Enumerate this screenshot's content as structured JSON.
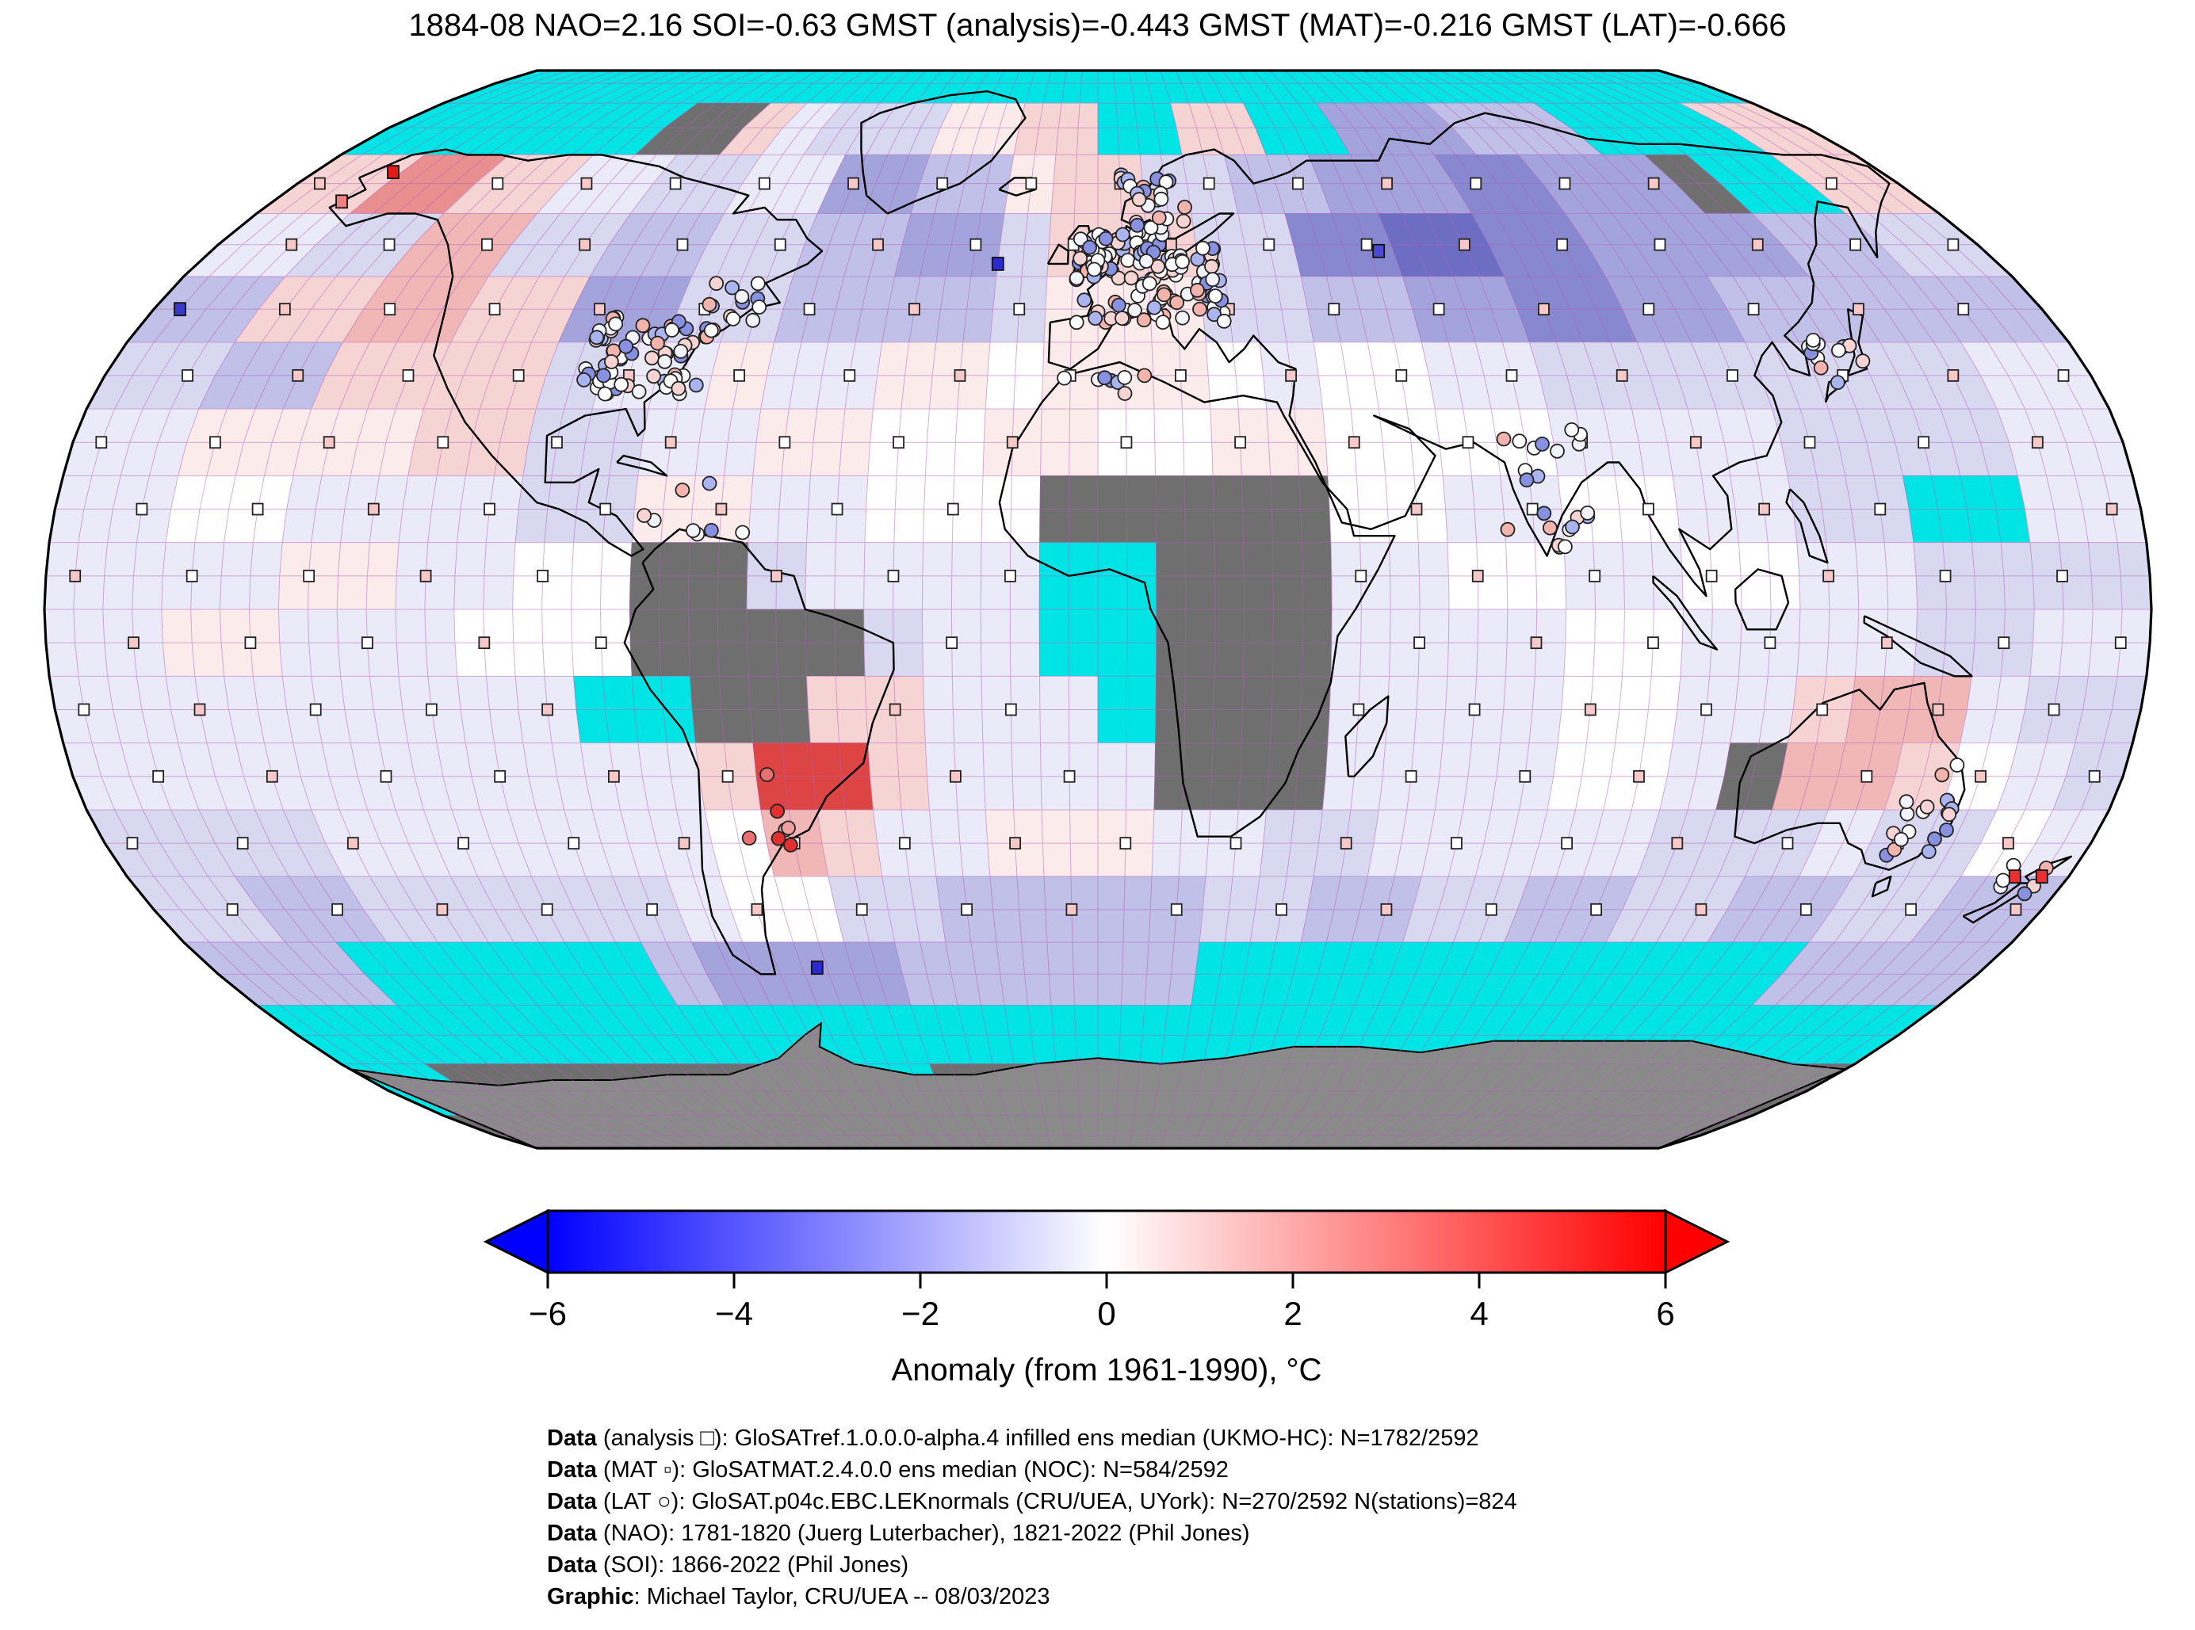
{
  "title": "1884-08 NAO=2.16 SOI=-0.63 GMST (analysis)=-0.443 GMST (MAT)=-0.216 GMST (LAT)=-0.666",
  "colorbar": {
    "label": "Anomaly (from 1961-1990), °C",
    "min": -6,
    "max": 6,
    "ticks": [
      "−6",
      "−4",
      "−2",
      "0",
      "2",
      "4",
      "6"
    ],
    "tick_values": [
      -6,
      -4,
      -2,
      0,
      2,
      4,
      6
    ],
    "left_color": "#0000ff",
    "mid_color": "#ffffff",
    "right_color": "#ff0000"
  },
  "captions": [
    {
      "bold": "Data",
      "text": " (analysis □): GloSATref.1.0.0.0-alpha.4 infilled ens median (UKMO-HC): N=1782/2592"
    },
    {
      "bold": "Data",
      "text": " (MAT ▫): GloSATMAT.2.4.0.0 ens median (NOC): N=584/2592"
    },
    {
      "bold": "Data",
      "text": " (LAT ○): GloSAT.p04c.EBC.LEKnormals (CRU/UEA, UYork): N=270/2592 N(stations)=824"
    },
    {
      "bold": "Data",
      "text": " (NAO): 1781-1820 (Juerg Luterbacher), 1821-2022 (Phil Jones)"
    },
    {
      "bold": "Data",
      "text": " (SOI): 1866-2022 (Phil Jones)"
    },
    {
      "bold": "Graphic",
      "text": ": Michael Taylor, CRU/UEA -- 08/03/2023"
    }
  ],
  "chart_data": {
    "type": "heatmap",
    "projection": "robinson",
    "period": "1884-08",
    "stats": {
      "NAO": 2.16,
      "SOI": -0.63,
      "GMST_analysis": -0.443,
      "GMST_MAT": -0.216,
      "GMST_LAT": -0.666
    },
    "counts": {
      "analysis": "1782/2592",
      "MAT": "584/2592",
      "LAT": "270/2592",
      "stations": 824
    },
    "anomaly_range_c": [
      -6,
      6
    ],
    "missing_color": "#6f6f6f",
    "out_of_range_color": "#00e4e6",
    "antarctica_color": "#8a8a8a",
    "palette": {
      "W": "#ffffff",
      "a": "#eaeaf8",
      "b": "#d8d8f1",
      "c": "#c0c0e8",
      "d": "#a4a4dd",
      "e": "#8888d0",
      "f": "#6d6dc4",
      "p": "#fbebeb",
      "q": "#f7d4d4",
      "r": "#f1b6b6",
      "s": "#e98f8f",
      "u": "#dd4444",
      "C": "#00e4e6",
      "G": "#6f6f6f"
    },
    "grid_extent": {
      "lon": [
        -180,
        180
      ],
      "lat": [
        90,
        -90
      ],
      "cell_deg": 10
    },
    "grid_rows_10deg": [
      "CCCCCCCCCCCCCCCCCCCCCCCCCCCCCCCCCCCC",
      "CCCCCCCGGqabbbppqqCCqqCCdddcccCCCCqq",
      "qqssqqaabbaaddccpqqbbccdddeedddGCCqq",
      "aabbrrbbccbbccddbqqqbbeeffeeddddccbb",
      "ccqqrrqqddbbccccbpppbbccddeeddcccccc",
      "bbccqqqqbaapaappWpppWaWWaabbbbbbbbaa",
      "aappppqqbbaappWWppWWppWWWWaaaabbbbaa",
      "aaWWaaaabbppaaWWWGGGGGWWaaWWaabbCCaa",
      "aaaappaaWWGGbaaaaCCGGGaaWWaaWWaabbbb",
      "aappaaaWWWGGGGbaaCCGGGaaaaWWaaaabbaa",
      "aaaaaaaaaCCGGqqaaaCGGGaaaaWWaaqrrabb",
      "aaaaaaaaaaaquuqaaaaGGGaaaaWWaGrrqWab",
      "bbbbaaaaaaaWrqaapppaabbaaaaabbbabbWa",
      "bbccbbbbbbaWWbbcccccbbccbbccbbccbbcc",
      "cccCCCCCCcddddccccccCCCCCCCCCCCCcccc",
      "CCCCCCCCCCCCCCCCCCCCCCCCCCCCCCCCCCCC",
      "CCGGGGGGGGGGCCGGGGGGGGGGGGGGGGGGGGGG",
      "GGGGGGGGGGGGGGGGGGGGGGGGGGGGGGGGGGGG"
    ],
    "marker_legend": [
      {
        "symbol": "□",
        "name": "analysis"
      },
      {
        "symbol": "▫",
        "name": "MAT"
      },
      {
        "symbol": "○",
        "name": "LAT station"
      }
    ],
    "station_clusters": [
      {
        "name": "europe",
        "lon": 10,
        "lat": 50,
        "dlon": 28,
        "dlat": 14,
        "n": 110
      },
      {
        "name": "uk",
        "lon": -2,
        "lat": 53,
        "dlon": 8,
        "dlat": 7,
        "n": 25
      },
      {
        "name": "scandinavia",
        "lon": 12,
        "lat": 62,
        "dlon": 14,
        "dlat": 10,
        "n": 25
      },
      {
        "name": "east-us",
        "lon": -83,
        "lat": 38,
        "dlon": 22,
        "dlat": 12,
        "n": 70
      },
      {
        "name": "canada-east",
        "lon": -70,
        "lat": 46,
        "dlon": 12,
        "dlat": 6,
        "n": 12
      },
      {
        "name": "india",
        "lon": 78,
        "lat": 18,
        "dlon": 16,
        "dlat": 18,
        "n": 22
      },
      {
        "name": "japan",
        "lon": 136,
        "lat": 36,
        "dlon": 10,
        "dlat": 9,
        "n": 12
      },
      {
        "name": "east-australia",
        "lon": 147,
        "lat": -30,
        "dlon": 12,
        "dlat": 14,
        "n": 20
      },
      {
        "name": "new-zealand",
        "lon": 172,
        "lat": -41,
        "dlon": 8,
        "dlat": 7,
        "n": 6
      },
      {
        "name": "south-america",
        "lon": -60,
        "lat": -30,
        "dlon": 10,
        "dlat": 12,
        "n": 7,
        "warm": true
      },
      {
        "name": "caribbean",
        "lon": -70,
        "lat": 15,
        "dlon": 20,
        "dlat": 8,
        "n": 8
      },
      {
        "name": "north-africa-coast",
        "lon": 0,
        "lat": 34,
        "dlon": 20,
        "dlat": 4,
        "n": 8
      }
    ],
    "special_markers": [
      {
        "lon": -162,
        "lat": 67,
        "color": "#e31a1a"
      },
      {
        "lon": -165,
        "lat": 62,
        "color": "#ef8080"
      },
      {
        "lon": 175,
        "lat": -40,
        "color": "#e83030"
      },
      {
        "lon": 170,
        "lat": -40,
        "color": "#e83030"
      },
      {
        "lon": -57,
        "lat": -54,
        "color": "#2a2ad0"
      },
      {
        "lon": -20,
        "lat": 52,
        "color": "#2a2ad0"
      },
      {
        "lon": -175,
        "lat": 45,
        "color": "#3a3ac8"
      },
      {
        "lon": 57,
        "lat": 54,
        "color": "#4a4ad4"
      }
    ]
  }
}
